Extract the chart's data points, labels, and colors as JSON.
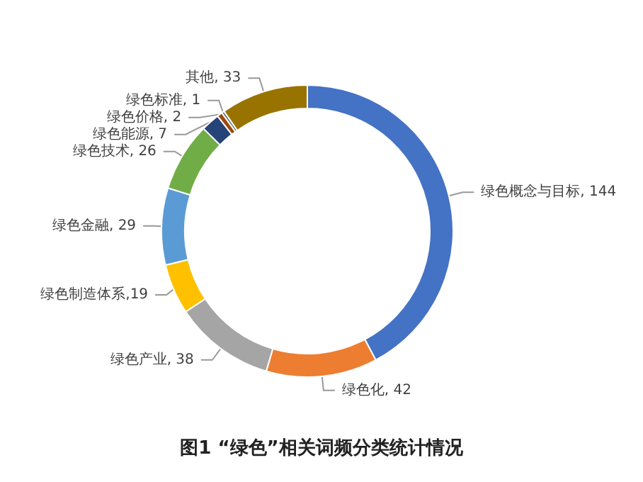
{
  "chart_data": {
    "type": "donut",
    "title": "图1 “绿色”相关词频分类统计情况",
    "categories": [
      "绿色概念与目标",
      "绿色化",
      "绿色产业",
      "绿色制造体系",
      "绿色金融",
      "绿色技术",
      "绿色能源",
      "绿色价格",
      "绿色标准",
      "其他"
    ],
    "values": [
      144,
      42,
      38,
      19,
      29,
      26,
      7,
      2,
      1,
      33
    ],
    "value_labels": [
      ", 144",
      ", 42",
      ", 38",
      ",19",
      ", 29",
      ", 26",
      ", 7",
      ", 2",
      ", 1",
      ", 33"
    ],
    "colors": [
      "#4472c4",
      "#ed7d31",
      "#a5a5a5",
      "#ffc000",
      "#5b9bd5",
      "#70ad47",
      "#264478",
      "#9e480e",
      "#636363",
      "#997300"
    ],
    "legend": false
  }
}
